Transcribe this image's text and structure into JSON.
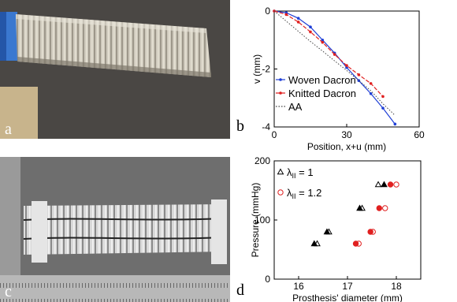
{
  "panels": {
    "a": {
      "letter": "a"
    },
    "b": {
      "letter": "b"
    },
    "c": {
      "letter": "c"
    },
    "d": {
      "letter": "d"
    }
  },
  "chart_data": [
    {
      "type": "line",
      "panel": "b",
      "xlabel": "Position, x+u (mm)",
      "ylabel": "v (mm)",
      "xlim": [
        0,
        60
      ],
      "ylim": [
        -4,
        0
      ],
      "xticks": [
        0,
        30,
        60
      ],
      "yticks": [
        0,
        -2,
        -4
      ],
      "grid": false,
      "legend_position": "bottom-left",
      "series": [
        {
          "name": "Woven Dacron",
          "color": "#1f3fd6",
          "marker": "dot",
          "line": "solid",
          "x": [
            0,
            5,
            10,
            15,
            20,
            25,
            30,
            35,
            40,
            45,
            50
          ],
          "y": [
            0,
            -0.06,
            -0.25,
            -0.55,
            -1.0,
            -1.45,
            -1.95,
            -2.4,
            -2.85,
            -3.35,
            -3.9
          ]
        },
        {
          "name": "Knitted Dacron",
          "color": "#e02020",
          "marker": "dot",
          "line": "dashed",
          "x": [
            0,
            5,
            10,
            15,
            20,
            25,
            30,
            35,
            40,
            45
          ],
          "y": [
            0,
            -0.12,
            -0.38,
            -0.72,
            -1.08,
            -1.5,
            -1.88,
            -2.2,
            -2.5,
            -2.95
          ]
        },
        {
          "name": "AA",
          "color": "#444444",
          "marker": "none",
          "line": "dotted",
          "x": [
            0,
            5,
            10,
            15,
            20,
            25,
            30,
            35,
            40,
            45,
            50
          ],
          "y": [
            0,
            -0.35,
            -0.7,
            -1.05,
            -1.38,
            -1.72,
            -2.05,
            -2.4,
            -2.75,
            -3.2,
            -3.6
          ]
        }
      ]
    },
    {
      "type": "scatter",
      "panel": "d",
      "xlabel": "Prosthesis' diameter (mm)",
      "ylabel": "Pressure (mmHg)",
      "xlim": [
        15.5,
        18.5
      ],
      "ylim": [
        0,
        200
      ],
      "xticks": [
        16,
        17,
        18
      ],
      "yticks": [
        0,
        100,
        200
      ],
      "grid": false,
      "legend_position": "top-left",
      "series": [
        {
          "name": "λ_II = 1",
          "name_main": "λ",
          "name_sub": "II",
          "name_suffix": " = 1",
          "color": "#000000",
          "marker": "triangle",
          "open": [
            [
              16.38,
              60
            ],
            [
              16.62,
              80
            ],
            [
              17.3,
              120
            ],
            [
              17.63,
              160
            ]
          ],
          "filled": [
            [
              16.32,
              60
            ],
            [
              16.58,
              80
            ],
            [
              17.25,
              120
            ],
            [
              17.75,
              160
            ]
          ]
        },
        {
          "name": "λ_II = 1.2",
          "name_main": "λ",
          "name_sub": "II",
          "name_suffix": " = 1.2",
          "color": "#e02020",
          "marker": "circle",
          "open": [
            [
              17.23,
              60
            ],
            [
              17.52,
              80
            ],
            [
              17.77,
              120
            ],
            [
              18.0,
              160
            ]
          ],
          "filled": [
            [
              17.17,
              60
            ],
            [
              17.47,
              80
            ],
            [
              17.65,
              120
            ],
            [
              17.88,
              160
            ]
          ]
        }
      ]
    }
  ]
}
